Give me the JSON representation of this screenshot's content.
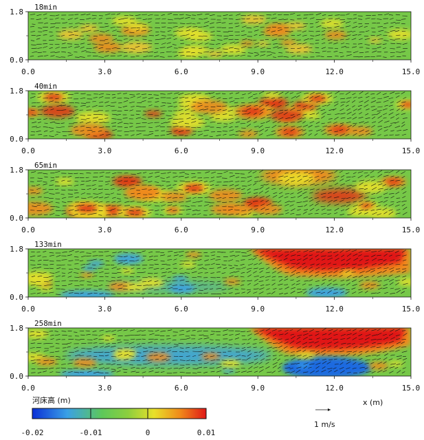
{
  "chart_data": {
    "type": "heatmap",
    "panels": [
      {
        "time_label": "18min",
        "pattern": "mild"
      },
      {
        "time_label": "40min",
        "pattern": "patchy"
      },
      {
        "time_label": "65min",
        "pattern": "patchy"
      },
      {
        "time_label": "133min",
        "pattern": "scour"
      },
      {
        "time_label": "258min",
        "pattern": "deep"
      }
    ],
    "x_ticks": [
      "0.0",
      "3.0",
      "6.0",
      "9.0",
      "12.0",
      "15.0"
    ],
    "y_ticks": [
      "0.0",
      "1.8"
    ],
    "xlim": [
      0,
      15
    ],
    "ylim": [
      0,
      1.8
    ],
    "xlabel": "x (m)",
    "colorbar": {
      "label": "河床高 (m)",
      "ticks": [
        "-0.02",
        "-0.01",
        "0",
        "0.01"
      ],
      "range": [
        -0.02,
        0.01
      ],
      "colors": [
        "#0a2fd6",
        "#3aa0e6",
        "#5dc85a",
        "#8ccf3e",
        "#e8e02a",
        "#f08a1a",
        "#e01818"
      ]
    },
    "vector_scale_label": "1 m/s"
  }
}
